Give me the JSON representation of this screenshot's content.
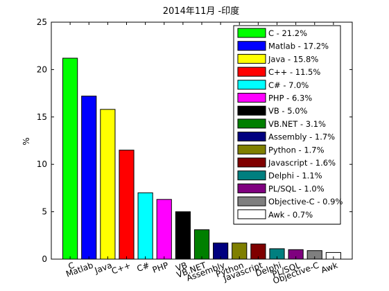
{
  "chart_data": {
    "type": "bar",
    "title": "2014年11月 -印度",
    "xlabel": "",
    "ylabel": "%",
    "ylim": [
      0,
      25
    ],
    "yticks": [
      0,
      5,
      10,
      15,
      20,
      25
    ],
    "grid": false,
    "legend_position": "top-right",
    "categories": [
      "C",
      "Matlab",
      "Java",
      "C++",
      "C#",
      "PHP",
      "VB",
      "VB.NET",
      "Assembly",
      "Python",
      "Javascript",
      "Delphi",
      "PL/SQL",
      "Objective-C",
      "Awk"
    ],
    "values": [
      21.2,
      17.2,
      15.8,
      11.5,
      7.0,
      6.3,
      5.0,
      3.1,
      1.7,
      1.7,
      1.6,
      1.1,
      1.0,
      0.9,
      0.7
    ],
    "colors": [
      "#00ff00",
      "#0000ff",
      "#ffff00",
      "#ff0000",
      "#00ffff",
      "#ff00ff",
      "#000000",
      "#007f00",
      "#00007f",
      "#7f7f00",
      "#7f0000",
      "#007f7f",
      "#7f007f",
      "#7f7f7f",
      "#ffffff"
    ],
    "legend": [
      "C - 21.2%",
      "Matlab - 17.2%",
      "Java - 15.8%",
      "C++ - 11.5%",
      "C# - 7.0%",
      "PHP - 6.3%",
      "VB - 5.0%",
      "VB.NET - 3.1%",
      "Assembly - 1.7%",
      "Python - 1.7%",
      "Javascript - 1.6%",
      "Delphi - 1.1%",
      "PL/SQL - 1.0%",
      "Objective-C - 0.9%",
      "Awk - 0.7%"
    ]
  }
}
